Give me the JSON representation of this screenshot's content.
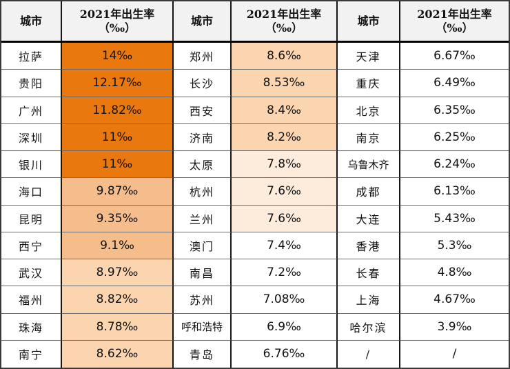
{
  "table": {
    "city_header": "城市",
    "rate_header_line1": "2021年出生率",
    "rate_header_line2": "（‰）",
    "groups": [
      {
        "rows": [
          {
            "city": "拉萨",
            "rate": "14‰",
            "tier": "t1"
          },
          {
            "city": "贵阳",
            "rate": "12.17‰",
            "tier": "t1"
          },
          {
            "city": "广州",
            "rate": "11.82‰",
            "tier": "t1"
          },
          {
            "city": "深圳",
            "rate": "11‰",
            "tier": "t1"
          },
          {
            "city": "银川",
            "rate": "11‰",
            "tier": "t1"
          },
          {
            "city": "海口",
            "rate": "9.87‰",
            "tier": "t2"
          },
          {
            "city": "昆明",
            "rate": "9.35‰",
            "tier": "t2"
          },
          {
            "city": "西宁",
            "rate": "9.1‰",
            "tier": "t2"
          },
          {
            "city": "武汉",
            "rate": "8.97‰",
            "tier": "t3"
          },
          {
            "city": "福州",
            "rate": "8.82‰",
            "tier": "t3"
          },
          {
            "city": "珠海",
            "rate": "8.78‰",
            "tier": "t3"
          },
          {
            "city": "南宁",
            "rate": "8.62‰",
            "tier": "t3"
          }
        ]
      },
      {
        "rows": [
          {
            "city": "郑州",
            "rate": "8.6‰",
            "tier": "t3"
          },
          {
            "city": "长沙",
            "rate": "8.53‰",
            "tier": "t3"
          },
          {
            "city": "西安",
            "rate": "8.4‰",
            "tier": "t3"
          },
          {
            "city": "济南",
            "rate": "8.2‰",
            "tier": "t3"
          },
          {
            "city": "太原",
            "rate": "7.8‰",
            "tier": "t4"
          },
          {
            "city": "杭州",
            "rate": "7.6‰",
            "tier": "t4"
          },
          {
            "city": "兰州",
            "rate": "7.6‰",
            "tier": "t4"
          },
          {
            "city": "澳门",
            "rate": "7.4‰",
            "tier": "t0"
          },
          {
            "city": "南昌",
            "rate": "7.2‰",
            "tier": "t0"
          },
          {
            "city": "苏州",
            "rate": "7.08‰",
            "tier": "t0"
          },
          {
            "city": "呼和浩特",
            "rate": "6.9‰",
            "tier": "t0"
          },
          {
            "city": "青岛",
            "rate": "6.76‰",
            "tier": "t0"
          }
        ]
      },
      {
        "rows": [
          {
            "city": "天津",
            "rate": "6.67‰",
            "tier": "t0"
          },
          {
            "city": "重庆",
            "rate": "6.49‰",
            "tier": "t0"
          },
          {
            "city": "北京",
            "rate": "6.35‰",
            "tier": "t0"
          },
          {
            "city": "南京",
            "rate": "6.25‰",
            "tier": "t0"
          },
          {
            "city": "乌鲁木齐",
            "rate": "6.24‰",
            "tier": "t0"
          },
          {
            "city": "成都",
            "rate": "6.13‰",
            "tier": "t0"
          },
          {
            "city": "大连",
            "rate": "5.43‰",
            "tier": "t0"
          },
          {
            "city": "香港",
            "rate": "5.3‰",
            "tier": "t0"
          },
          {
            "city": "长春",
            "rate": "4.8‰",
            "tier": "t0"
          },
          {
            "city": "上海",
            "rate": "4.67‰",
            "tier": "t0"
          },
          {
            "city": "哈尔滨",
            "rate": "3.9‰",
            "tier": "t0"
          },
          {
            "city": "/",
            "rate": "/",
            "tier": "t0"
          }
        ]
      }
    ]
  },
  "colors": {
    "t0": "#ffffff",
    "t1": "#e9780f",
    "t2": "#f5bd8b",
    "t3": "#fad5af",
    "t4": "#fdecdc",
    "header_bg": "#f2f2f2",
    "grid_line": "#6b6b6b",
    "column_line": "#141414"
  },
  "chart_data": {
    "type": "table",
    "title": "2021年出生率（‰）",
    "columns": [
      "城市",
      "2021年出生率（‰）"
    ],
    "rows": [
      [
        "拉萨",
        14
      ],
      [
        "贵阳",
        12.17
      ],
      [
        "广州",
        11.82
      ],
      [
        "深圳",
        11
      ],
      [
        "银川",
        11
      ],
      [
        "海口",
        9.87
      ],
      [
        "昆明",
        9.35
      ],
      [
        "西宁",
        9.1
      ],
      [
        "武汉",
        8.97
      ],
      [
        "福州",
        8.82
      ],
      [
        "珠海",
        8.78
      ],
      [
        "南宁",
        8.62
      ],
      [
        "郑州",
        8.6
      ],
      [
        "长沙",
        8.53
      ],
      [
        "西安",
        8.4
      ],
      [
        "济南",
        8.2
      ],
      [
        "太原",
        7.8
      ],
      [
        "杭州",
        7.6
      ],
      [
        "兰州",
        7.6
      ],
      [
        "澳门",
        7.4
      ],
      [
        "南昌",
        7.2
      ],
      [
        "苏州",
        7.08
      ],
      [
        "呼和浩特",
        6.9
      ],
      [
        "青岛",
        6.76
      ],
      [
        "天津",
        6.67
      ],
      [
        "重庆",
        6.49
      ],
      [
        "北京",
        6.35
      ],
      [
        "南京",
        6.25
      ],
      [
        "乌鲁木齐",
        6.24
      ],
      [
        "成都",
        6.13
      ],
      [
        "大连",
        5.43
      ],
      [
        "香港",
        5.3
      ],
      [
        "长春",
        4.8
      ],
      [
        "上海",
        4.67
      ],
      [
        "哈尔滨",
        3.9
      ],
      [
        "/",
        "/"
      ]
    ],
    "layout": "three column-pairs side by side, heat-colored value cells (darker orange = higher birth rate)"
  }
}
